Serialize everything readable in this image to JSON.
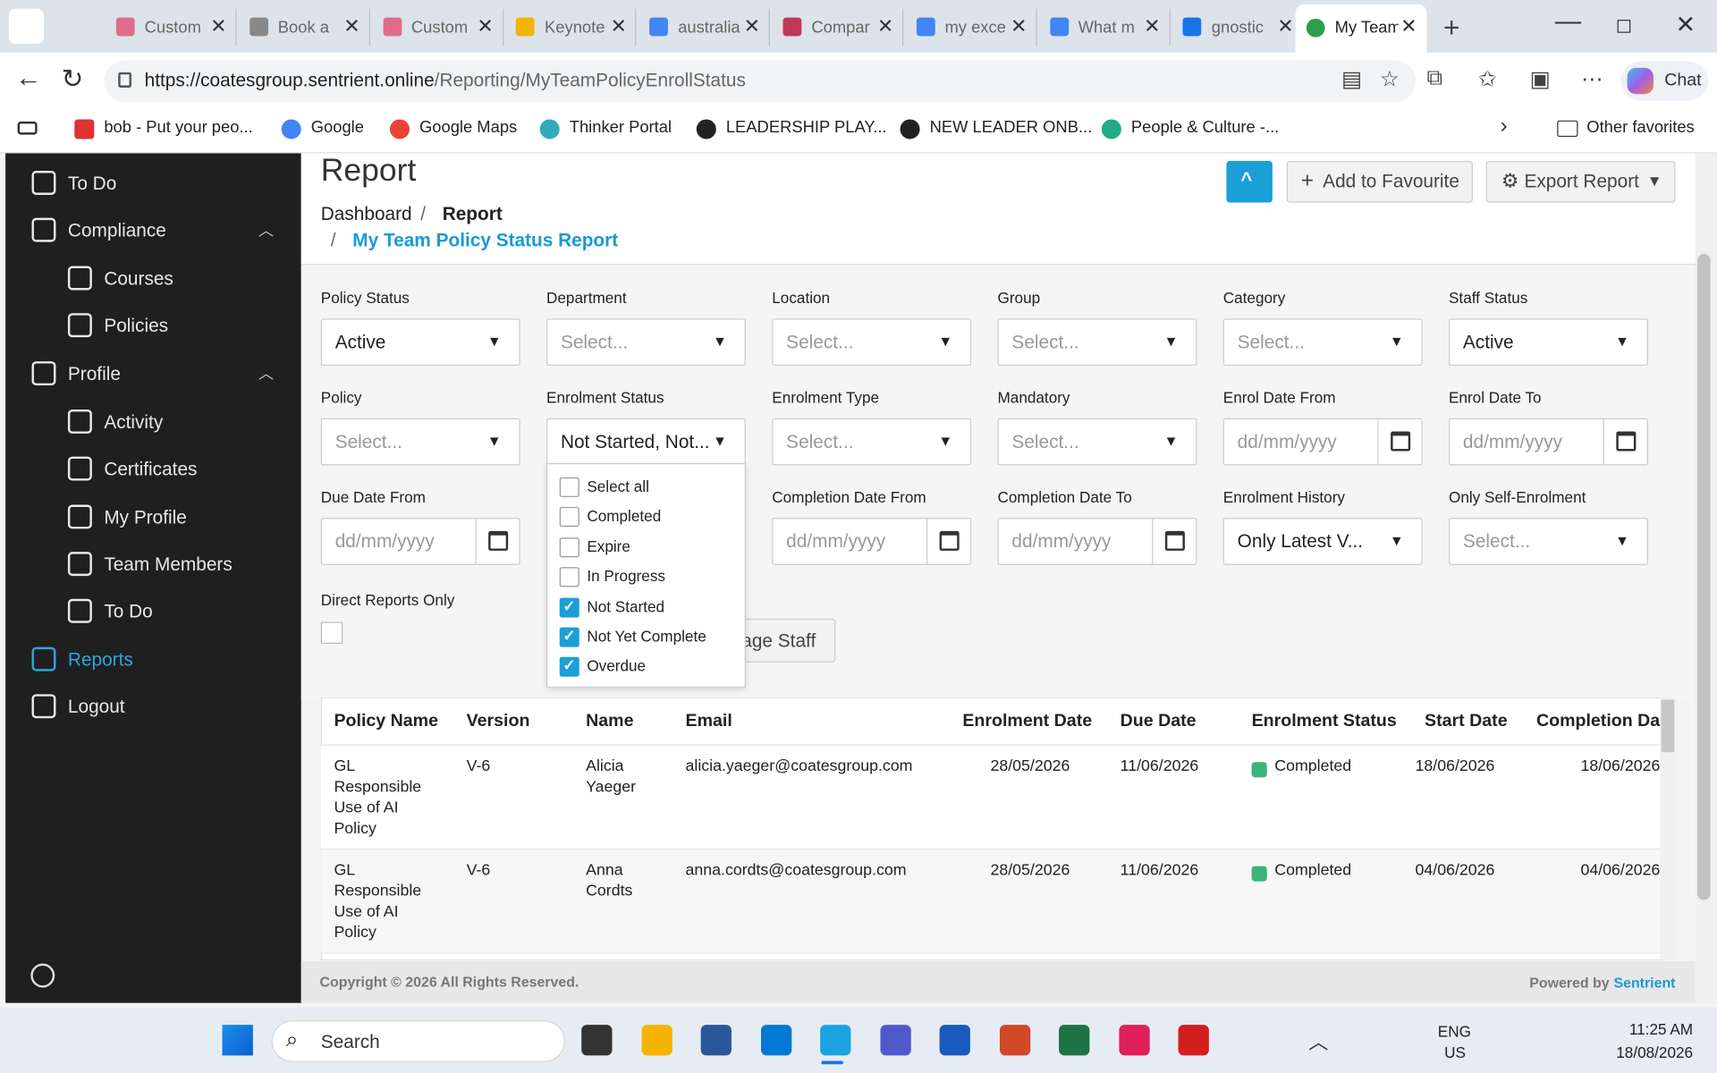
{
  "browser": {
    "tabs": [
      "Custom",
      "Book a",
      "Custom",
      "Keynote",
      "australia",
      "Compar",
      "my exce",
      "What m",
      "gnostic",
      "My Team"
    ],
    "url_host": "https://coatesgroup.sentrient.online",
    "url_path": "/Reporting/MyTeamPolicyEnrollStatus",
    "chat": "Chat",
    "bookmarks": [
      "bob - Put your peo...",
      "Google",
      "Google Maps",
      "Thinker Portal",
      "LEADERSHIP PLAY...",
      "NEW LEADER ONB...",
      "People & Culture -..."
    ],
    "other_favorites": "Other favorites"
  },
  "sidebar": {
    "items": [
      {
        "label": "To Do",
        "level": 1
      },
      {
        "label": "Compliance",
        "level": 1,
        "expanded": true
      },
      {
        "label": "Courses",
        "level": 2
      },
      {
        "label": "Policies",
        "level": 2
      },
      {
        "label": "Profile",
        "level": 1,
        "expanded": true
      },
      {
        "label": "Activity",
        "level": 2
      },
      {
        "label": "Certificates",
        "level": 2
      },
      {
        "label": "My Profile",
        "level": 2
      },
      {
        "label": "Team Members",
        "level": 2
      },
      {
        "label": "To Do",
        "level": 2
      },
      {
        "label": "Reports",
        "level": 1,
        "active": true
      },
      {
        "label": "Logout",
        "level": 1
      }
    ]
  },
  "page": {
    "title": "Report",
    "breadcrumb": [
      "Dashboard",
      "Report",
      "My Team Policy Status Report"
    ],
    "buttons": {
      "favourite": "Add to Favourite",
      "export": "Export Report"
    },
    "filter_rows": [
      [
        {
          "label": "Policy Status",
          "value": "Active"
        },
        {
          "label": "Department",
          "placeholder": "Select..."
        },
        {
          "label": "Location",
          "placeholder": "Select..."
        },
        {
          "label": "Group",
          "placeholder": "Select..."
        },
        {
          "label": "Category",
          "placeholder": "Select..."
        },
        {
          "label": "Staff Status",
          "value": "Active"
        }
      ],
      [
        {
          "label": "Policy",
          "placeholder": "Select..."
        },
        {
          "label": "Enrolment Status",
          "value": "Not Started, Not..."
        },
        {
          "label": "Enrolment Type",
          "placeholder": "Select..."
        },
        {
          "label": "Mandatory",
          "placeholder": "Select..."
        },
        {
          "label": "Enrol Date From",
          "placeholder": "dd/mm/yyyy",
          "kind": "date"
        },
        {
          "label": "Enrol Date To",
          "placeholder": "dd/mm/yyyy",
          "kind": "date"
        }
      ],
      [
        {
          "label": "Due Date From",
          "placeholder": "dd/mm/yyyy",
          "kind": "date"
        },
        {
          "label": "Completion Date From",
          "placeholder": "dd/mm/yyyy",
          "kind": "date"
        },
        {
          "label": "Completion Date To",
          "placeholder": "dd/mm/yyyy",
          "kind": "date"
        },
        {
          "label": "Enrolment History",
          "value": "Only Latest V..."
        },
        {
          "label": "Only Self-Enrolment",
          "placeholder": "Select..."
        }
      ]
    ],
    "direct_reports": "Direct Reports Only",
    "manage_staff": "Manage Staff",
    "status_options": [
      {
        "label": "Select all",
        "checked": false
      },
      {
        "label": "Completed",
        "checked": false
      },
      {
        "label": "Expire",
        "checked": false
      },
      {
        "label": "In Progress",
        "checked": false
      },
      {
        "label": "Not Started",
        "checked": true
      },
      {
        "label": "Not Yet Complete",
        "checked": true
      },
      {
        "label": "Overdue",
        "checked": true
      }
    ],
    "table": {
      "headers": [
        "Policy Name",
        "Version",
        "Name",
        "Email",
        "Enrolment Date",
        "Due Date",
        "Enrolment Status",
        "Start Date",
        "Completion Date"
      ],
      "rows": [
        [
          "GL Responsible Use of AI Policy",
          "V-6",
          "Alicia Yaeger",
          "alicia.yaeger@coatesgroup.com",
          "28/05/2026",
          "11/06/2026",
          "Completed",
          "18/06/2026",
          "18/06/2026"
        ],
        [
          "GL Responsible Use of AI Policy",
          "V-6",
          "Anna Cordts",
          "anna.cordts@coatesgroup.com",
          "28/05/2026",
          "11/06/2026",
          "Completed",
          "04/06/2026",
          "04/06/2026"
        ]
      ]
    },
    "copyright": "Copyright © 2026 All Rights Reserved.",
    "powered_by": "Powered by",
    "brand": "Sentrient"
  },
  "taskbar": {
    "search": "Search",
    "lang": "ENG",
    "region": "US",
    "time": "11:25 AM",
    "date": "18/08/2026"
  }
}
